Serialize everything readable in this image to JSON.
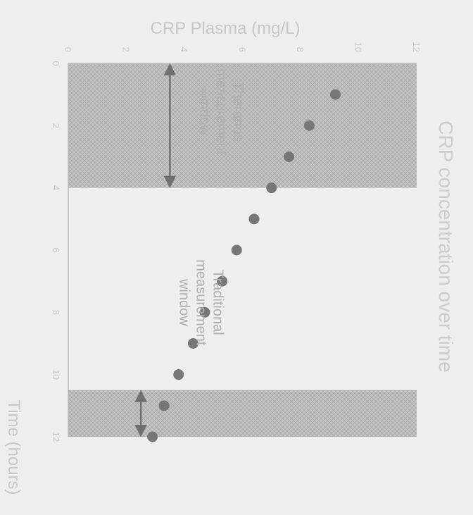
{
  "chart_data": {
    "type": "scatter",
    "title": "CRP concentration over time",
    "xlabel": "Time (hours)",
    "ylabel": "CRP Plasma (mg/L)",
    "xlim": [
      0,
      12
    ],
    "ylim": [
      0,
      12
    ],
    "xticks": [
      0,
      2,
      4,
      6,
      8,
      10,
      12
    ],
    "yticks": [
      0,
      2,
      4,
      6,
      8,
      10,
      12
    ],
    "grid": false,
    "series": [
      {
        "x": [
          1,
          2,
          3,
          4,
          5,
          6,
          7,
          8,
          9,
          10,
          11,
          12
        ],
        "y": [
          9.2,
          8.3,
          7.6,
          7.0,
          6.4,
          5.8,
          5.3,
          4.7,
          4.3,
          3.8,
          3.3,
          2.9
        ],
        "color": "#777777"
      }
    ],
    "shaded_regions": [
      {
        "x_range": [
          0,
          4
        ],
        "label_lines": [
          "Theranos",
          "measurement",
          "window"
        ]
      },
      {
        "x_range": [
          10.5,
          12
        ],
        "label_lines": [
          "Traditional",
          "measurement",
          "window"
        ]
      }
    ]
  }
}
